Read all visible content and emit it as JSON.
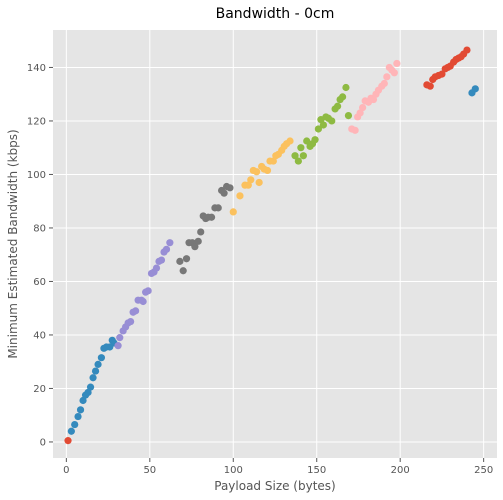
{
  "chart_data": {
    "type": "scatter",
    "title": "Bandwidth - 0cm",
    "xlabel": "Payload Size (bytes)",
    "ylabel": "Minimum Estimated Bandwidth (kbps)",
    "xlim": [
      -8,
      258
    ],
    "ylim": [
      -6,
      154
    ],
    "xticks": [
      0,
      50,
      100,
      150,
      200,
      250
    ],
    "yticks": [
      0,
      20,
      40,
      60,
      80,
      100,
      120,
      140
    ],
    "grid": true,
    "legend": "none",
    "colors": {
      "background": "#E5E5E5",
      "grid": "#FFFFFF",
      "red": "#E24A33",
      "blue": "#348ABD",
      "purple": "#988ED5",
      "gray": "#777777",
      "yellow": "#FBC15E",
      "green": "#8EBA42",
      "pink": "#FFB5B8"
    },
    "series": [
      {
        "color": "#E24A33",
        "points": [
          [
            1,
            0.5
          ]
        ]
      },
      {
        "color": "#348ABD",
        "points": [
          [
            3,
            4
          ],
          [
            5,
            6.5
          ],
          [
            7,
            9.5
          ],
          [
            8.5,
            12
          ],
          [
            10,
            15.5
          ],
          [
            11.5,
            17.5
          ],
          [
            13,
            18.5
          ],
          [
            14.5,
            20.5
          ],
          [
            16,
            24
          ],
          [
            17.5,
            26.5
          ],
          [
            19,
            29
          ],
          [
            21,
            31.5
          ],
          [
            22.5,
            35
          ],
          [
            24,
            35.5
          ],
          [
            26,
            35.5
          ],
          [
            27.5,
            38
          ],
          [
            28.5,
            37
          ]
        ]
      },
      {
        "color": "#988ED5",
        "points": [
          [
            31,
            36
          ],
          [
            32,
            39
          ],
          [
            34,
            41.5
          ],
          [
            35.5,
            43
          ],
          [
            37,
            44.5
          ],
          [
            38.5,
            45
          ],
          [
            40,
            48.5
          ],
          [
            41.5,
            49
          ],
          [
            43,
            53
          ],
          [
            45,
            53
          ],
          [
            46,
            52.5
          ],
          [
            47.5,
            56
          ],
          [
            49,
            56.5
          ],
          [
            51,
            63
          ],
          [
            52.5,
            63.5
          ],
          [
            54,
            65
          ],
          [
            55.5,
            67.5
          ],
          [
            57,
            68
          ],
          [
            58.5,
            71
          ],
          [
            60,
            72
          ],
          [
            62,
            74.5
          ]
        ]
      },
      {
        "color": "#777777",
        "points": [
          [
            68,
            67.5
          ],
          [
            70,
            64
          ],
          [
            72,
            68.5
          ],
          [
            73.5,
            74.5
          ],
          [
            75.5,
            74.5
          ],
          [
            77,
            73
          ],
          [
            79,
            75
          ],
          [
            80.5,
            78.5
          ],
          [
            82,
            84.5
          ],
          [
            83.5,
            83.5
          ],
          [
            85,
            84
          ],
          [
            87,
            84
          ],
          [
            89,
            87.5
          ],
          [
            91,
            87.5
          ],
          [
            93,
            94
          ],
          [
            94.5,
            93
          ],
          [
            96,
            95.5
          ],
          [
            98,
            95
          ]
        ]
      },
      {
        "color": "#FBC15E",
        "points": [
          [
            100,
            86
          ],
          [
            104,
            92
          ],
          [
            107,
            96
          ],
          [
            109,
            96
          ],
          [
            110.5,
            98
          ],
          [
            112,
            101.5
          ],
          [
            114,
            101
          ],
          [
            115.5,
            97
          ],
          [
            117,
            103
          ],
          [
            118.5,
            102
          ],
          [
            120.5,
            101.5
          ],
          [
            122,
            105
          ],
          [
            124,
            105
          ],
          [
            125.5,
            107
          ],
          [
            127,
            107.5
          ],
          [
            129,
            109
          ],
          [
            130.5,
            110.5
          ],
          [
            132,
            111.5
          ],
          [
            134,
            112.5
          ]
        ]
      },
      {
        "color": "#8EBA42",
        "points": [
          [
            137,
            107
          ],
          [
            139,
            105
          ],
          [
            140.5,
            110
          ],
          [
            142,
            107
          ],
          [
            144,
            112.5
          ],
          [
            146,
            110.5
          ],
          [
            147.5,
            111.5
          ],
          [
            149,
            113
          ],
          [
            151,
            117
          ],
          [
            152.5,
            120.5
          ],
          [
            154,
            118.5
          ],
          [
            155.5,
            121.5
          ],
          [
            157,
            121
          ],
          [
            159,
            120
          ],
          [
            161,
            124.5
          ],
          [
            162.5,
            125.5
          ],
          [
            164,
            128
          ],
          [
            165.5,
            129
          ],
          [
            167.5,
            132.5
          ],
          [
            169,
            122
          ]
        ]
      },
      {
        "color": "#FFB5B8",
        "points": [
          [
            171,
            117
          ],
          [
            173,
            116.5
          ],
          [
            174.5,
            121.5
          ],
          [
            176,
            123
          ],
          [
            177.5,
            125
          ],
          [
            179,
            127.5
          ],
          [
            181,
            127
          ],
          [
            182.5,
            128.5
          ],
          [
            184,
            128
          ],
          [
            185.5,
            130
          ],
          [
            187,
            131.5
          ],
          [
            189,
            133
          ],
          [
            190.5,
            134
          ],
          [
            192,
            136.5
          ],
          [
            193.5,
            140
          ],
          [
            195,
            139
          ],
          [
            196.5,
            138
          ],
          [
            198,
            141.5
          ]
        ]
      },
      {
        "color": "#E24A33",
        "points": [
          [
            216,
            133.5
          ],
          [
            218,
            133
          ],
          [
            219.5,
            135.5
          ],
          [
            221,
            136.5
          ],
          [
            223,
            137
          ],
          [
            225,
            137.5
          ],
          [
            227,
            139.5
          ],
          [
            228.5,
            140
          ],
          [
            230,
            140.5
          ],
          [
            232,
            142
          ],
          [
            233.5,
            143
          ],
          [
            235,
            143.5
          ],
          [
            236.5,
            144
          ],
          [
            238,
            145
          ],
          [
            240,
            146.5
          ]
        ]
      },
      {
        "color": "#348ABD",
        "points": [
          [
            243,
            130.5
          ],
          [
            245,
            132
          ]
        ]
      }
    ]
  }
}
